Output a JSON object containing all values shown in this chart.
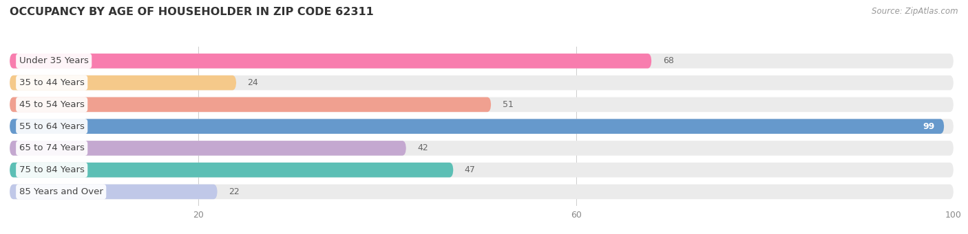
{
  "title": "OCCUPANCY BY AGE OF HOUSEHOLDER IN ZIP CODE 62311",
  "source": "Source: ZipAtlas.com",
  "categories": [
    "Under 35 Years",
    "35 to 44 Years",
    "45 to 54 Years",
    "55 to 64 Years",
    "65 to 74 Years",
    "75 to 84 Years",
    "85 Years and Over"
  ],
  "values": [
    68,
    24,
    51,
    99,
    42,
    47,
    22
  ],
  "bar_colors": [
    "#F87DAE",
    "#F5C98A",
    "#F0A090",
    "#6699CC",
    "#C4A8D0",
    "#5CBFB5",
    "#C0C8E8"
  ],
  "bar_bg_color": "#EBEBEB",
  "background_color": "#FFFFFF",
  "title_fontsize": 11.5,
  "label_fontsize": 9.5,
  "value_fontsize": 9,
  "source_fontsize": 8.5,
  "xmin": 0,
  "xmax": 100,
  "xticks": [
    20,
    60,
    100
  ],
  "bar_height": 0.68,
  "title_color": "#333333",
  "label_color": "#444444",
  "value_color_outside": "#666666",
  "grid_color": "#CCCCCC",
  "source_color": "#999999"
}
